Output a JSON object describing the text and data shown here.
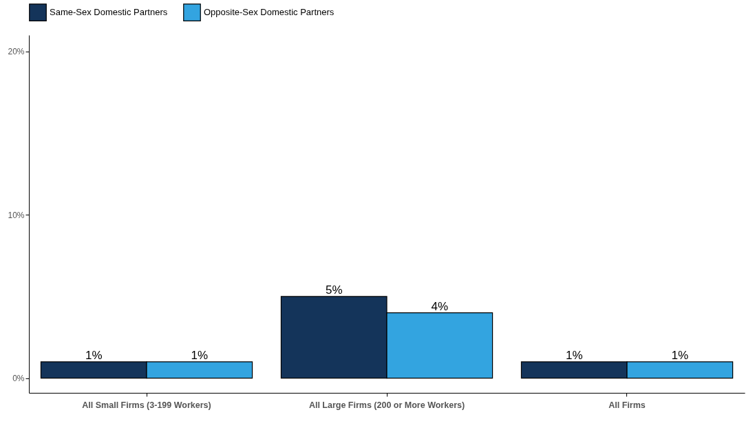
{
  "chart_data": {
    "type": "bar",
    "categories": [
      "All Small Firms (3-199 Workers)",
      "All Large Firms (200 or More Workers)",
      "All Firms"
    ],
    "series": [
      {
        "name": "Same-Sex Domestic Partners",
        "color": "#14345a",
        "values": [
          1,
          5,
          1
        ],
        "value_labels": [
          "1%",
          "5%",
          "1%"
        ]
      },
      {
        "name": "Opposite-Sex Domestic Partners",
        "color": "#33a4e0",
        "values": [
          1,
          4,
          1
        ],
        "value_labels": [
          "1%",
          "4%",
          "1%"
        ]
      }
    ],
    "ylim": [
      -0.9,
      21
    ],
    "yticks": [
      {
        "value": 0,
        "label": "0%"
      },
      {
        "value": 10,
        "label": "10%"
      },
      {
        "value": 20,
        "label": "20%"
      }
    ],
    "grid": false,
    "legend": "top"
  }
}
